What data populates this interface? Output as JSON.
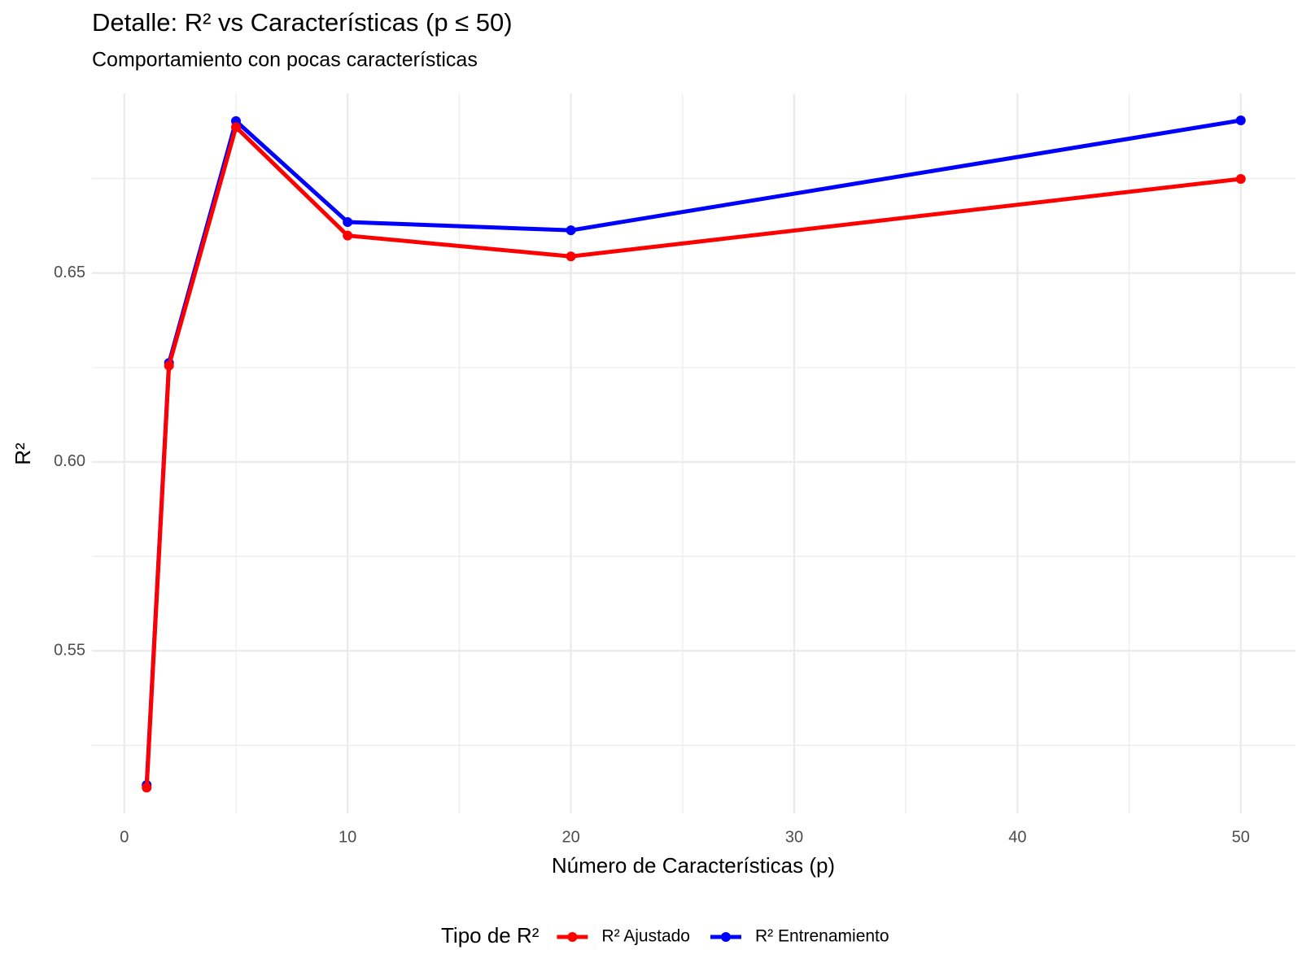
{
  "chart_data": {
    "type": "line",
    "title": "Detalle: R² vs Características (p ≤ 50)",
    "subtitle": "Comportamiento con pocas características",
    "x_label": "Número de Características (p)",
    "y_label": "R²",
    "legend_title": "Tipo de R²",
    "legend_position": "bottom",
    "x": [
      1,
      2,
      5,
      10,
      20,
      50
    ],
    "series": [
      {
        "name": "R² Ajustado",
        "color": "#ff0000",
        "values": [
          0.5138,
          0.6255,
          0.6886,
          0.6599,
          0.6544,
          0.6749
        ]
      },
      {
        "name": "R² Entrenamiento",
        "color": "#0000ff",
        "values": [
          0.5145,
          0.6262,
          0.6902,
          0.6635,
          0.6613,
          0.6904
        ]
      }
    ],
    "xlim": [
      -1.45,
      52.45
    ],
    "ylim": [
      0.507,
      0.6975
    ],
    "xticks": [
      0,
      10,
      20,
      30,
      40,
      50
    ],
    "yticks": [
      0.55,
      {
        "value": 0.6,
        "label": "0.60"
      },
      0.65
    ],
    "grid": true,
    "minor_grid": true
  }
}
